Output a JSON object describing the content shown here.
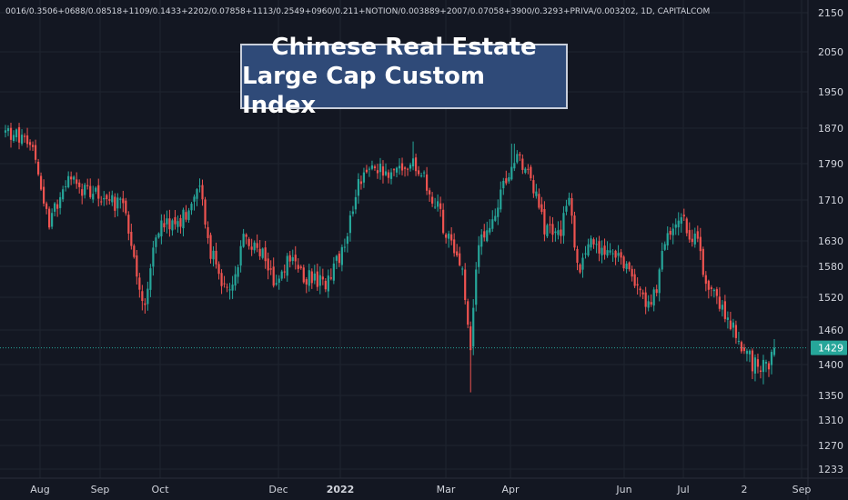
{
  "chart_data": {
    "type": "candlestick",
    "symbol_line": "0016/0.3506+0688/0.08518+1109/0.1433+2202/0.07858+1113/0.2549+0960/0.211+NOTION/0.003889+2007/0.07058+3900/0.3293+PRIVA/0.003202, 1D, CAPITALCOM",
    "title_lines": [
      "Chinese Real Estate",
      "Large Cap Custom Index"
    ],
    "last_price": 1429,
    "y_ticks": [
      2150,
      2050,
      1950,
      1870,
      1790,
      1710,
      1630,
      1580,
      1520,
      1460,
      1400,
      1350,
      1310,
      1270,
      1233
    ],
    "x_ticks": [
      {
        "label": "Aug",
        "bold": false
      },
      {
        "label": "Sep",
        "bold": false
      },
      {
        "label": "Oct",
        "bold": false
      },
      {
        "label": "Dec",
        "bold": false
      },
      {
        "label": "2022",
        "bold": true
      },
      {
        "label": "Mar",
        "bold": false
      },
      {
        "label": "Apr",
        "bold": false
      },
      {
        "label": "Jun",
        "bold": false
      },
      {
        "label": "Jul",
        "bold": false
      },
      {
        "label": "2",
        "bold": false
      },
      {
        "label": "Sep",
        "bold": false
      }
    ],
    "path_keypoints": [
      {
        "t": 0,
        "v": 1860
      },
      {
        "t": 0.02,
        "v": 1850
      },
      {
        "t": 0.04,
        "v": 1800
      },
      {
        "t": 0.055,
        "v": 1670
      },
      {
        "t": 0.07,
        "v": 1700
      },
      {
        "t": 0.085,
        "v": 1760
      },
      {
        "t": 0.1,
        "v": 1730
      },
      {
        "t": 0.13,
        "v": 1720
      },
      {
        "t": 0.155,
        "v": 1690
      },
      {
        "t": 0.17,
        "v": 1560
      },
      {
        "t": 0.18,
        "v": 1510
      },
      {
        "t": 0.2,
        "v": 1660
      },
      {
        "t": 0.23,
        "v": 1670
      },
      {
        "t": 0.25,
        "v": 1750
      },
      {
        "t": 0.265,
        "v": 1620
      },
      {
        "t": 0.28,
        "v": 1550
      },
      {
        "t": 0.295,
        "v": 1530
      },
      {
        "t": 0.31,
        "v": 1640
      },
      {
        "t": 0.33,
        "v": 1620
      },
      {
        "t": 0.35,
        "v": 1545
      },
      {
        "t": 0.37,
        "v": 1600
      },
      {
        "t": 0.39,
        "v": 1560
      },
      {
        "t": 0.42,
        "v": 1550
      },
      {
        "t": 0.44,
        "v": 1620
      },
      {
        "t": 0.46,
        "v": 1750
      },
      {
        "t": 0.48,
        "v": 1790
      },
      {
        "t": 0.5,
        "v": 1760
      },
      {
        "t": 0.53,
        "v": 1800
      },
      {
        "t": 0.55,
        "v": 1740
      },
      {
        "t": 0.57,
        "v": 1660
      },
      {
        "t": 0.585,
        "v": 1600
      },
      {
        "t": 0.595,
        "v": 1560
      },
      {
        "t": 0.605,
        "v": 1420
      },
      {
        "t": 0.615,
        "v": 1630
      },
      {
        "t": 0.64,
        "v": 1700
      },
      {
        "t": 0.66,
        "v": 1800
      },
      {
        "t": 0.68,
        "v": 1780
      },
      {
        "t": 0.7,
        "v": 1660
      },
      {
        "t": 0.72,
        "v": 1640
      },
      {
        "t": 0.735,
        "v": 1710
      },
      {
        "t": 0.745,
        "v": 1560
      },
      {
        "t": 0.76,
        "v": 1620
      },
      {
        "t": 0.8,
        "v": 1600
      },
      {
        "t": 0.83,
        "v": 1510
      },
      {
        "t": 0.845,
        "v": 1520
      },
      {
        "t": 0.86,
        "v": 1640
      },
      {
        "t": 0.88,
        "v": 1670
      },
      {
        "t": 0.9,
        "v": 1620
      },
      {
        "t": 0.915,
        "v": 1530
      },
      {
        "t": 0.935,
        "v": 1500
      },
      {
        "t": 0.95,
        "v": 1460
      },
      {
        "t": 0.965,
        "v": 1415
      },
      {
        "t": 0.98,
        "v": 1395
      },
      {
        "t": 0.99,
        "v": 1400
      },
      {
        "t": 1,
        "v": 1429
      }
    ],
    "extremes": [
      {
        "t": 0.605,
        "low": 1355
      },
      {
        "t": 0.18,
        "low": 1490
      },
      {
        "t": 0.53,
        "high": 1840
      },
      {
        "t": 0.66,
        "high": 1835
      },
      {
        "t": 0.985,
        "low": 1368
      }
    ],
    "colors": {
      "up": "#26a69a",
      "down": "#ef5350",
      "background": "#131722",
      "grid": "#1f2430",
      "axis_text": "#d1d4dc",
      "price_line": "#26a69a"
    }
  }
}
